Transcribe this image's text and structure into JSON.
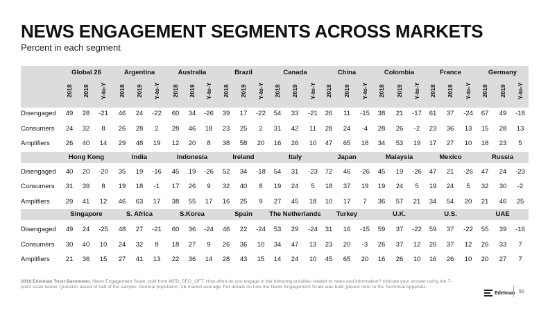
{
  "title": "NEWS ENGAGEMENT SEGMENTS ACROSS MARKETS",
  "subtitle": "Percent in each segment",
  "year_headers": [
    "2018",
    "2019",
    "Y-to-Y"
  ],
  "row_labels": [
    "Disengaged",
    "Consumers",
    "Amplifiers"
  ],
  "blocks": [
    {
      "markets": [
        {
          "name": "Global 26",
          "values": [
            [
              49,
              28,
              -21
            ],
            [
              24,
              32,
              8
            ],
            [
              26,
              40,
              14
            ]
          ]
        },
        {
          "name": "Argentina",
          "values": [
            [
              46,
              24,
              -22
            ],
            [
              26,
              28,
              2
            ],
            [
              29,
              48,
              19
            ]
          ]
        },
        {
          "name": "Australia",
          "values": [
            [
              60,
              34,
              -26
            ],
            [
              28,
              46,
              18
            ],
            [
              12,
              20,
              8
            ]
          ]
        },
        {
          "name": "Brazil",
          "values": [
            [
              39,
              17,
              -22
            ],
            [
              23,
              25,
              2
            ],
            [
              38,
              58,
              20
            ]
          ]
        },
        {
          "name": "Canada",
          "values": [
            [
              54,
              33,
              -21
            ],
            [
              31,
              42,
              11
            ],
            [
              16,
              26,
              10
            ]
          ]
        },
        {
          "name": "China",
          "values": [
            [
              26,
              11,
              -15
            ],
            [
              28,
              24,
              -4
            ],
            [
              47,
              65,
              18
            ]
          ]
        },
        {
          "name": "Colombia",
          "values": [
            [
              38,
              21,
              -17
            ],
            [
              28,
              26,
              -2
            ],
            [
              34,
              53,
              19
            ]
          ]
        },
        {
          "name": "France",
          "values": [
            [
              61,
              37,
              -24
            ],
            [
              23,
              36,
              13
            ],
            [
              17,
              27,
              10
            ]
          ]
        },
        {
          "name": "Germany",
          "values": [
            [
              67,
              49,
              -18
            ],
            [
              15,
              28,
              13
            ],
            [
              18,
              23,
              5
            ]
          ]
        }
      ]
    },
    {
      "markets": [
        {
          "name": "Hong Kong",
          "values": [
            [
              40,
              20,
              -20
            ],
            [
              31,
              39,
              8
            ],
            [
              29,
              41,
              12
            ]
          ]
        },
        {
          "name": "India",
          "values": [
            [
              35,
              19,
              -16
            ],
            [
              19,
              18,
              -1
            ],
            [
              46,
              63,
              17
            ]
          ]
        },
        {
          "name": "Indonesia",
          "values": [
            [
              45,
              19,
              -26
            ],
            [
              17,
              26,
              9
            ],
            [
              38,
              55,
              17
            ]
          ]
        },
        {
          "name": "Ireland",
          "values": [
            [
              52,
              34,
              -18
            ],
            [
              32,
              40,
              8
            ],
            [
              16,
              25,
              9
            ]
          ]
        },
        {
          "name": "Italy",
          "values": [
            [
              54,
              31,
              -23
            ],
            [
              19,
              24,
              5
            ],
            [
              27,
              45,
              18
            ]
          ]
        },
        {
          "name": "Japan",
          "values": [
            [
              72,
              46,
              -26
            ],
            [
              18,
              37,
              19
            ],
            [
              10,
              17,
              7
            ]
          ]
        },
        {
          "name": "Malaysia",
          "values": [
            [
              45,
              19,
              -26
            ],
            [
              19,
              24,
              5
            ],
            [
              36,
              57,
              21
            ]
          ]
        },
        {
          "name": "Mexico",
          "values": [
            [
              47,
              21,
              -26
            ],
            [
              19,
              24,
              5
            ],
            [
              34,
              54,
              20
            ]
          ]
        },
        {
          "name": "Russia",
          "values": [
            [
              47,
              24,
              -23
            ],
            [
              32,
              30,
              -2
            ],
            [
              21,
              46,
              25
            ]
          ]
        }
      ]
    },
    {
      "markets": [
        {
          "name": "Singapore",
          "values": [
            [
              49,
              24,
              -25
            ],
            [
              30,
              40,
              10
            ],
            [
              21,
              36,
              15
            ]
          ]
        },
        {
          "name": "S. Africa",
          "values": [
            [
              48,
              27,
              -21
            ],
            [
              24,
              32,
              8
            ],
            [
              27,
              41,
              13
            ]
          ]
        },
        {
          "name": "S.Korea",
          "values": [
            [
              60,
              36,
              -24
            ],
            [
              18,
              27,
              9
            ],
            [
              22,
              36,
              14
            ]
          ]
        },
        {
          "name": "Spain",
          "values": [
            [
              46,
              22,
              -24
            ],
            [
              26,
              36,
              10
            ],
            [
              28,
              43,
              15
            ]
          ]
        },
        {
          "name": "The Netherlands",
          "values": [
            [
              53,
              29,
              -24
            ],
            [
              34,
              47,
              13
            ],
            [
              14,
              24,
              10
            ]
          ]
        },
        {
          "name": "Turkey",
          "values": [
            [
              31,
              16,
              -15
            ],
            [
              23,
              20,
              -3
            ],
            [
              45,
              65,
              20
            ]
          ]
        },
        {
          "name": "U.K.",
          "values": [
            [
              59,
              37,
              -22
            ],
            [
              26,
              37,
              12
            ],
            [
              16,
              26,
              10
            ]
          ]
        },
        {
          "name": "U.S.",
          "values": [
            [
              59,
              37,
              -22
            ],
            [
              26,
              37,
              12
            ],
            [
              16,
              26,
              10
            ]
          ]
        },
        {
          "name": "UAE",
          "values": [
            [
              55,
              39,
              -16
            ],
            [
              26,
              33,
              7
            ],
            [
              20,
              27,
              7
            ]
          ]
        }
      ]
    }
  ],
  "footer": {
    "bold": "2019 Edelman Trust Barometer.",
    "text": " News Engagement Scale, built from MED_SEG_OFT. How often do you engage in the following activities related to news and information? Indicate your answer using the 7-point scale below. Question asked of half of the sample. General population, 26-market average. For details on how the News Engagement Scale was built, please refer to the Technical Appendix."
  },
  "brand": "Edelman",
  "page_number": "50",
  "colors": {
    "band": "#dcdcdc",
    "text": "#111111",
    "footer": "#888888"
  }
}
